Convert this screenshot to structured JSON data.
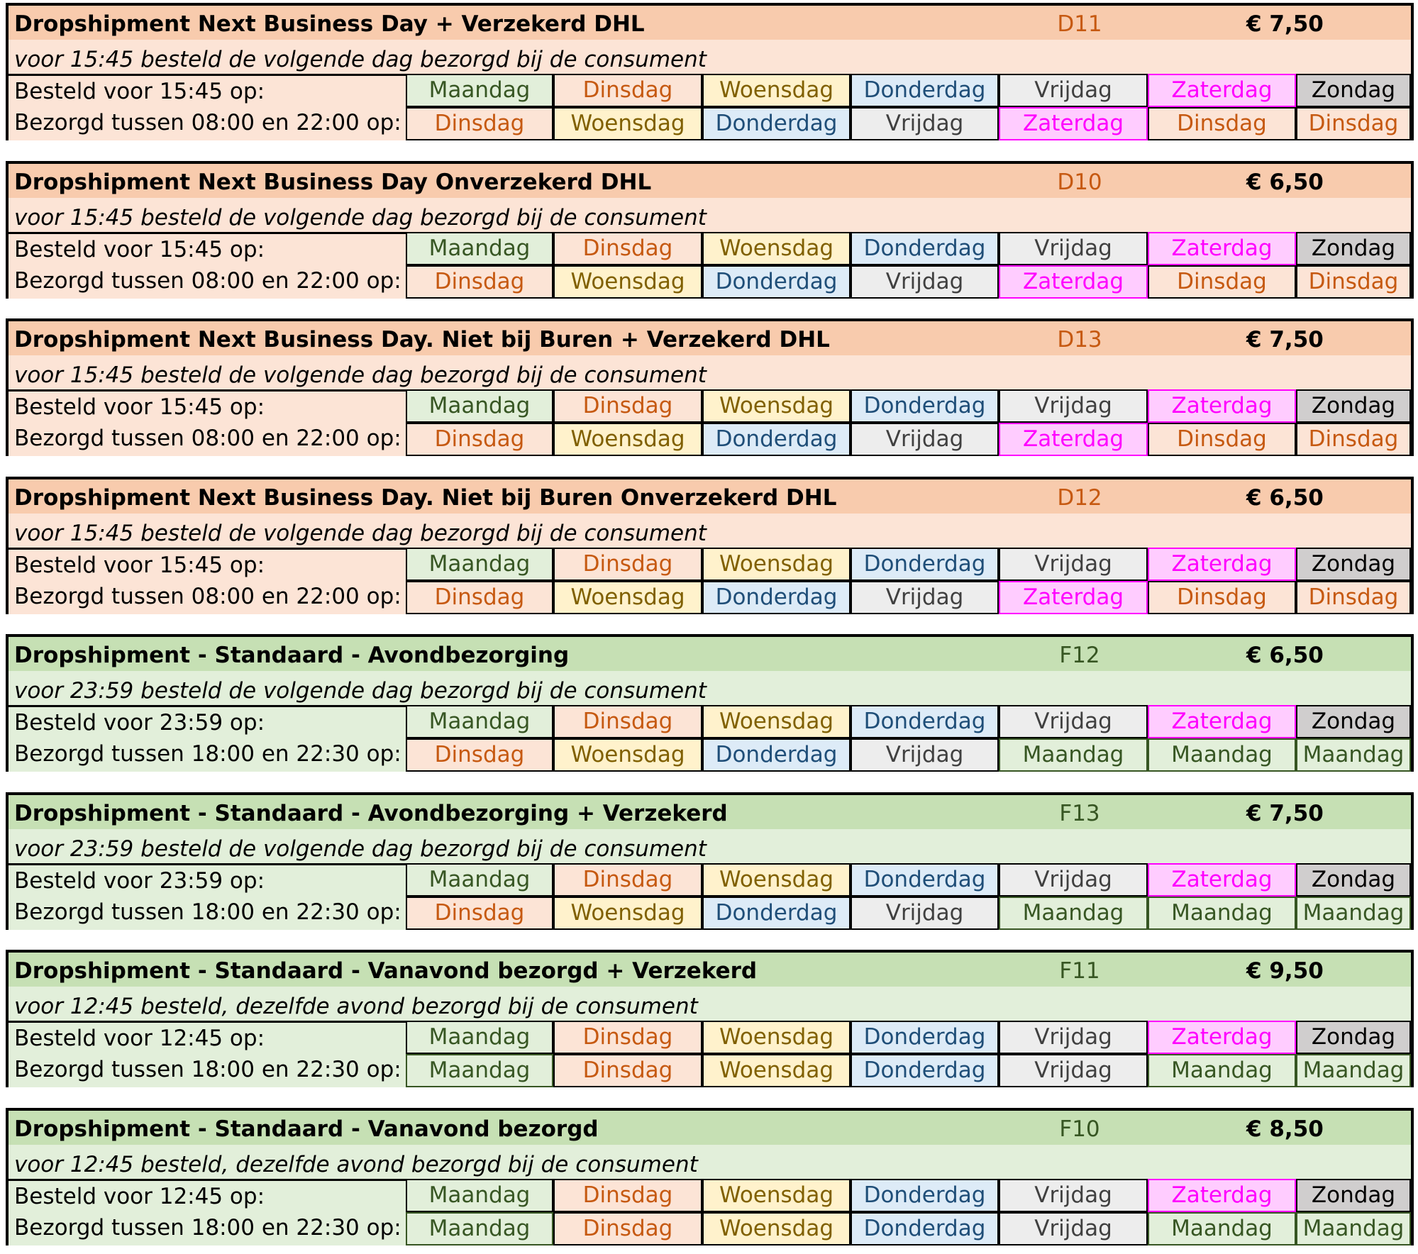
{
  "colors": {
    "maandag": {
      "bg": "#e2efda",
      "fg": "#375623"
    },
    "dinsdag": {
      "bg": "#fce4d6",
      "fg": "#c65911"
    },
    "woensdag": {
      "bg": "#fff2cc",
      "fg": "#806000"
    },
    "donderdag": {
      "bg": "#ddebf7",
      "fg": "#1f4e78"
    },
    "vrijdag": {
      "bg": "#ededed",
      "fg": "#404040"
    },
    "zaterdag": {
      "bg": "#ffccff",
      "fg": "#ff00ff"
    },
    "zondag": {
      "bg": "#d0cece",
      "fg": "#000000"
    }
  },
  "blocks": [
    {
      "theme": "orange",
      "title": "Dropshipment Next Business Day + Verzekerd DHL",
      "code": "D11",
      "price": "€ 7,50",
      "subtitle": "voor 15:45 besteld de volgende dag bezorgd bij de consument",
      "order_label": "Besteld voor 15:45 op:",
      "delivery_label": "Bezorgd tussen 08:00 en 22:00 op:",
      "order_days": [
        "Maandag",
        "Dinsdag",
        "Woensdag",
        "Donderdag",
        "Vrijdag",
        "Zaterdag",
        "Zondag"
      ],
      "delivery_days": [
        "Dinsdag",
        "Woensdag",
        "Donderdag",
        "Vrijdag",
        "Zaterdag",
        "Dinsdag",
        "Dinsdag"
      ]
    },
    {
      "theme": "orange",
      "title": "Dropshipment Next Business Day Onverzekerd DHL",
      "code": "D10",
      "price": "€ 6,50",
      "subtitle": "voor 15:45 besteld de volgende dag bezorgd bij de consument",
      "order_label": "Besteld voor 15:45 op:",
      "delivery_label": "Bezorgd tussen 08:00 en 22:00 op:",
      "order_days": [
        "Maandag",
        "Dinsdag",
        "Woensdag",
        "Donderdag",
        "Vrijdag",
        "Zaterdag",
        "Zondag"
      ],
      "delivery_days": [
        "Dinsdag",
        "Woensdag",
        "Donderdag",
        "Vrijdag",
        "Zaterdag",
        "Dinsdag",
        "Dinsdag"
      ]
    },
    {
      "theme": "orange",
      "title": "Dropshipment Next Business Day. Niet bij Buren + Verzekerd DHL",
      "code": "D13",
      "price": "€ 7,50",
      "subtitle": "voor 15:45 besteld de volgende dag bezorgd bij de consument",
      "order_label": "Besteld voor 15:45 op:",
      "delivery_label": "Bezorgd tussen 08:00 en 22:00 op:",
      "order_days": [
        "Maandag",
        "Dinsdag",
        "Woensdag",
        "Donderdag",
        "Vrijdag",
        "Zaterdag",
        "Zondag"
      ],
      "delivery_days": [
        "Dinsdag",
        "Woensdag",
        "Donderdag",
        "Vrijdag",
        "Zaterdag",
        "Dinsdag",
        "Dinsdag"
      ]
    },
    {
      "theme": "orange",
      "title": "Dropshipment Next Business Day. Niet bij Buren Onverzekerd DHL",
      "code": "D12",
      "price": "€ 6,50",
      "subtitle": "voor 15:45 besteld de volgende dag bezorgd bij de consument",
      "order_label": "Besteld voor 15:45 op:",
      "delivery_label": "Bezorgd tussen 08:00 en 22:00 op:",
      "order_days": [
        "Maandag",
        "Dinsdag",
        "Woensdag",
        "Donderdag",
        "Vrijdag",
        "Zaterdag",
        "Zondag"
      ],
      "delivery_days": [
        "Dinsdag",
        "Woensdag",
        "Donderdag",
        "Vrijdag",
        "Zaterdag",
        "Dinsdag",
        "Dinsdag"
      ]
    },
    {
      "theme": "green",
      "title": "Dropshipment - Standaard - Avondbezorging",
      "code": "F12",
      "price": "€ 6,50",
      "subtitle": "voor 23:59 besteld de volgende dag bezorgd bij de consument",
      "order_label": "Besteld voor 23:59 op:",
      "delivery_label": "Bezorgd tussen 18:00 en 22:30 op:",
      "order_days": [
        "Maandag",
        "Dinsdag",
        "Woensdag",
        "Donderdag",
        "Vrijdag",
        "Zaterdag",
        "Zondag"
      ],
      "delivery_days": [
        "Dinsdag",
        "Woensdag",
        "Donderdag",
        "Vrijdag",
        "Maandag",
        "Maandag",
        "Maandag"
      ]
    },
    {
      "theme": "green",
      "title": "Dropshipment - Standaard - Avondbezorging + Verzekerd",
      "code": "F13",
      "price": "€ 7,50",
      "subtitle": "voor 23:59 besteld de volgende dag bezorgd bij de consument",
      "order_label": "Besteld voor 23:59 op:",
      "delivery_label": "Bezorgd tussen 18:00 en 22:30 op:",
      "order_days": [
        "Maandag",
        "Dinsdag",
        "Woensdag",
        "Donderdag",
        "Vrijdag",
        "Zaterdag",
        "Zondag"
      ],
      "delivery_days": [
        "Dinsdag",
        "Woensdag",
        "Donderdag",
        "Vrijdag",
        "Maandag",
        "Maandag",
        "Maandag"
      ]
    },
    {
      "theme": "green",
      "title": "Dropshipment - Standaard - Vanavond bezorgd + Verzekerd",
      "code": "F11",
      "price": "€ 9,50",
      "subtitle": "voor 12:45 besteld, dezelfde avond bezorgd bij de consument",
      "order_label": "Besteld voor 12:45 op:",
      "delivery_label": "Bezorgd tussen 18:00 en 22:30 op:",
      "order_days": [
        "Maandag",
        "Dinsdag",
        "Woensdag",
        "Donderdag",
        "Vrijdag",
        "Zaterdag",
        "Zondag"
      ],
      "delivery_days": [
        "Maandag",
        "Dinsdag",
        "Woensdag",
        "Donderdag",
        "Vrijdag",
        "Maandag",
        "Maandag"
      ]
    },
    {
      "theme": "green",
      "title": "Dropshipment - Standaard - Vanavond bezorgd",
      "code": "F10",
      "price": "€ 8,50",
      "subtitle": "voor 12:45 besteld, dezelfde avond bezorgd bij de consument",
      "order_label": "Besteld voor 12:45 op:",
      "delivery_label": "Bezorgd tussen 18:00 en 22:30 op:",
      "order_days": [
        "Maandag",
        "Dinsdag",
        "Woensdag",
        "Donderdag",
        "Vrijdag",
        "Zaterdag",
        "Zondag"
      ],
      "delivery_days": [
        "Maandag",
        "Dinsdag",
        "Woensdag",
        "Donderdag",
        "Vrijdag",
        "Maandag",
        "Maandag"
      ]
    }
  ]
}
